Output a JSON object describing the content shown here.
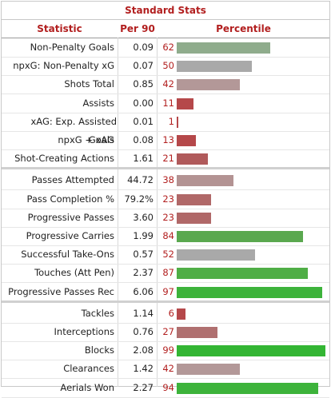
{
  "table": {
    "title": "Standard Stats",
    "headers": {
      "statistic": "Statistic",
      "per90": "Per 90",
      "percentile": "Percentile"
    },
    "groups": [
      [
        {
          "name": "Non-Penalty Goals",
          "per90": "0.09",
          "pct": "62",
          "pct_value": 62,
          "color": "#8fac8c"
        },
        {
          "name": "npxG: Non-Penalty xG",
          "per90": "0.07",
          "pct": "50",
          "pct_value": 50,
          "color": "#a9a9a9"
        },
        {
          "name": "Shots Total",
          "per90": "0.85",
          "pct": "42",
          "pct_value": 42,
          "color": "#b39898"
        },
        {
          "name": "Assists",
          "per90": "0.00",
          "pct": "11",
          "pct_value": 11,
          "color": "#b5484a"
        },
        {
          "name": "xAG: Exp. Assisted Goals",
          "per90": "0.01",
          "pct": "1",
          "pct_value": 1,
          "color": "#b5484a"
        },
        {
          "name": "npxG + xAG",
          "per90": "0.08",
          "pct": "13",
          "pct_value": 13,
          "color": "#b5484a"
        },
        {
          "name": "Shot-Creating Actions",
          "per90": "1.61",
          "pct": "21",
          "pct_value": 21,
          "color": "#b05a5b"
        }
      ],
      [
        {
          "name": "Passes Attempted",
          "per90": "44.72",
          "pct": "38",
          "pct_value": 38,
          "color": "#b39393"
        },
        {
          "name": "Pass Completion %",
          "per90": "79.2%",
          "pct": "23",
          "pct_value": 23,
          "color": "#b06868"
        },
        {
          "name": "Progressive Passes",
          "per90": "3.60",
          "pct": "23",
          "pct_value": 23,
          "color": "#b06868"
        },
        {
          "name": "Progressive Carries",
          "per90": "1.99",
          "pct": "84",
          "pct_value": 84,
          "color": "#5aa84f"
        },
        {
          "name": "Successful Take-Ons",
          "per90": "0.57",
          "pct": "52",
          "pct_value": 52,
          "color": "#a9a9a9"
        },
        {
          "name": "Touches (Att Pen)",
          "per90": "2.37",
          "pct": "87",
          "pct_value": 87,
          "color": "#4fae46"
        },
        {
          "name": "Progressive Passes Rec",
          "per90": "6.06",
          "pct": "97",
          "pct_value": 97,
          "color": "#3db33b"
        }
      ],
      [
        {
          "name": "Tackles",
          "per90": "1.14",
          "pct": "6",
          "pct_value": 6,
          "color": "#b5484a"
        },
        {
          "name": "Interceptions",
          "per90": "0.76",
          "pct": "27",
          "pct_value": 27,
          "color": "#b07070"
        },
        {
          "name": "Blocks",
          "per90": "2.08",
          "pct": "99",
          "pct_value": 99,
          "color": "#33b533"
        },
        {
          "name": "Clearances",
          "per90": "1.42",
          "pct": "42",
          "pct_value": 42,
          "color": "#b39898"
        },
        {
          "name": "Aerials Won",
          "per90": "2.27",
          "pct": "94",
          "pct_value": 94,
          "color": "#3db33b"
        }
      ]
    ]
  }
}
